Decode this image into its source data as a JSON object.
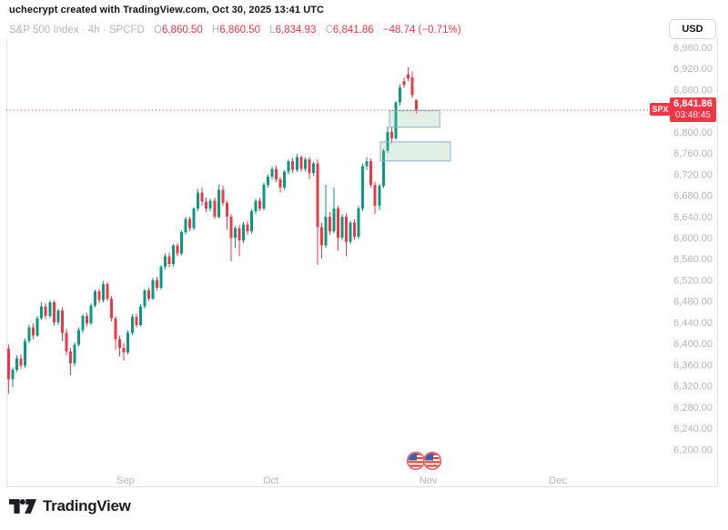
{
  "header": {
    "attribution": "uchecrypt created with TradingView.com, Oct 30, 2025 13:41 UTC"
  },
  "legend": {
    "symbol": "S&P 500 Index",
    "sep": "·",
    "interval": "4h",
    "exchange": "SPCFD",
    "o_label": "O",
    "o": "6,860.50",
    "h_label": "H",
    "h": "6,860.50",
    "l_label": "L",
    "l": "6,834.93",
    "c_label": "C",
    "c": "6,841.86",
    "change": "−48.74 (−0.71%)"
  },
  "toolbar": {
    "currency_button": "USD"
  },
  "last_price": {
    "symbol_tag": "SPX",
    "price": "6,841.86",
    "countdown": "03:48:45",
    "value": 6841.86
  },
  "branding": {
    "logo_text": "TradingView"
  },
  "colors": {
    "up": "#089981",
    "down": "#F23645",
    "axis_text": "#b2b5be",
    "border": "#e0e3eb",
    "zone_fill": "rgba(140,190,150,0.25)",
    "zone_border": "#8fb1cf",
    "price_line": "#F23645",
    "flag_ring": "#e35b66",
    "flag_red": "#e53935",
    "flag_blue": "#3b5fa0"
  },
  "chart_data": {
    "type": "candlestick",
    "title": "S&P 500 Index",
    "interval": "4h",
    "currency": "USD",
    "ylim": [
      6130,
      6977
    ],
    "grid": false,
    "last_close": 6841.86,
    "price_ticks": [
      {
        "value": 6960,
        "label": "6,960.00"
      },
      {
        "value": 6920,
        "label": "6,920.00"
      },
      {
        "value": 6880,
        "label": "6,880.00"
      },
      {
        "value": 6800,
        "label": "6,800.00"
      },
      {
        "value": 6760,
        "label": "6,760.00"
      },
      {
        "value": 6720,
        "label": "6,720.00"
      },
      {
        "value": 6680,
        "label": "6,680.00"
      },
      {
        "value": 6640,
        "label": "6,640.00"
      },
      {
        "value": 6600,
        "label": "6,600.00"
      },
      {
        "value": 6560,
        "label": "6,560.00"
      },
      {
        "value": 6520,
        "label": "6,520.00"
      },
      {
        "value": 6480,
        "label": "6,480.00"
      },
      {
        "value": 6440,
        "label": "6,440.00"
      },
      {
        "value": 6400,
        "label": "6,400.00"
      },
      {
        "value": 6360,
        "label": "6,360.00"
      },
      {
        "value": 6320,
        "label": "6,320.00"
      },
      {
        "value": 6280,
        "label": "6,280.00"
      },
      {
        "value": 6240,
        "label": "6,240.00"
      },
      {
        "value": 6200,
        "label": "6,200.00"
      }
    ],
    "time_labels": [
      {
        "label": "Sep",
        "bar": 28.5
      },
      {
        "label": "Oct",
        "bar": 63.8
      },
      {
        "label": "Nov",
        "bar": 102.0
      },
      {
        "label": "Dec",
        "bar": 133.5
      }
    ],
    "holiday_markers": [
      {
        "bar": 99.0
      },
      {
        "bar": 103.0
      }
    ],
    "zones": [
      {
        "price_top": 6840,
        "price_bottom": 6809,
        "bar_start": 92.6,
        "bar_end": 104.8
      },
      {
        "price_top": 6781,
        "price_bottom": 6745,
        "bar_start": 90.4,
        "bar_end": 107.4
      }
    ],
    "candles": [
      [
        6390,
        6398,
        6305,
        6332
      ],
      [
        6332,
        6355,
        6318,
        6350
      ],
      [
        6350,
        6378,
        6346,
        6372
      ],
      [
        6372,
        6380,
        6352,
        6358
      ],
      [
        6358,
        6410,
        6354,
        6405
      ],
      [
        6405,
        6436,
        6400,
        6430
      ],
      [
        6430,
        6438,
        6408,
        6415
      ],
      [
        6415,
        6452,
        6412,
        6448
      ],
      [
        6448,
        6478,
        6444,
        6470
      ],
      [
        6470,
        6476,
        6446,
        6452
      ],
      [
        6452,
        6482,
        6448,
        6478
      ],
      [
        6478,
        6482,
        6434,
        6440
      ],
      [
        6440,
        6466,
        6435,
        6462
      ],
      [
        6462,
        6468,
        6405,
        6420
      ],
      [
        6420,
        6428,
        6378,
        6385
      ],
      [
        6385,
        6392,
        6340,
        6362
      ],
      [
        6362,
        6402,
        6356,
        6398
      ],
      [
        6398,
        6430,
        6394,
        6425
      ],
      [
        6425,
        6456,
        6420,
        6452
      ],
      [
        6452,
        6458,
        6432,
        6438
      ],
      [
        6438,
        6476,
        6434,
        6472
      ],
      [
        6472,
        6502,
        6468,
        6498
      ],
      [
        6498,
        6504,
        6476,
        6482
      ],
      [
        6482,
        6518,
        6478,
        6512
      ],
      [
        6512,
        6516,
        6480,
        6485
      ],
      [
        6485,
        6490,
        6442,
        6448
      ],
      [
        6448,
        6452,
        6388,
        6408
      ],
      [
        6408,
        6415,
        6375,
        6392
      ],
      [
        6392,
        6400,
        6368,
        6383
      ],
      [
        6383,
        6425,
        6380,
        6420
      ],
      [
        6420,
        6455,
        6416,
        6450
      ],
      [
        6450,
        6456,
        6430,
        6435
      ],
      [
        6435,
        6474,
        6432,
        6470
      ],
      [
        6470,
        6504,
        6466,
        6500
      ],
      [
        6500,
        6506,
        6480,
        6485
      ],
      [
        6485,
        6524,
        6482,
        6520
      ],
      [
        6520,
        6526,
        6500,
        6505
      ],
      [
        6505,
        6548,
        6502,
        6545
      ],
      [
        6545,
        6570,
        6540,
        6565
      ],
      [
        6565,
        6572,
        6544,
        6550
      ],
      [
        6550,
        6588,
        6546,
        6585
      ],
      [
        6585,
        6590,
        6565,
        6570
      ],
      [
        6570,
        6614,
        6566,
        6610
      ],
      [
        6610,
        6640,
        6606,
        6635
      ],
      [
        6635,
        6640,
        6612,
        6618
      ],
      [
        6618,
        6658,
        6614,
        6655
      ],
      [
        6655,
        6692,
        6650,
        6685
      ],
      [
        6685,
        6695,
        6660,
        6668
      ],
      [
        6668,
        6676,
        6648,
        6655
      ],
      [
        6655,
        6674,
        6650,
        6670
      ],
      [
        6670,
        6676,
        6635,
        6640
      ],
      [
        6640,
        6700,
        6636,
        6690
      ],
      [
        6690,
        6698,
        6660,
        6665
      ],
      [
        6665,
        6670,
        6615,
        6640
      ],
      [
        6640,
        6645,
        6555,
        6600
      ],
      [
        6600,
        6622,
        6580,
        6618
      ],
      [
        6618,
        6624,
        6565,
        6595
      ],
      [
        6595,
        6630,
        6590,
        6625
      ],
      [
        6625,
        6632,
        6605,
        6612
      ],
      [
        6612,
        6654,
        6608,
        6650
      ],
      [
        6650,
        6674,
        6645,
        6670
      ],
      [
        6670,
        6676,
        6650,
        6655
      ],
      [
        6655,
        6704,
        6652,
        6700
      ],
      [
        6700,
        6720,
        6695,
        6715
      ],
      [
        6715,
        6734,
        6710,
        6730
      ],
      [
        6730,
        6736,
        6705,
        6710
      ],
      [
        6710,
        6715,
        6685,
        6695
      ],
      [
        6695,
        6728,
        6690,
        6725
      ],
      [
        6725,
        6748,
        6720,
        6745
      ],
      [
        6745,
        6750,
        6722,
        6728
      ],
      [
        6728,
        6758,
        6724,
        6752
      ],
      [
        6752,
        6756,
        6725,
        6730
      ],
      [
        6730,
        6752,
        6726,
        6748
      ],
      [
        6748,
        6752,
        6710,
        6722
      ],
      [
        6722,
        6744,
        6716,
        6740
      ],
      [
        6740,
        6748,
        6548,
        6620
      ],
      [
        6620,
        6628,
        6560,
        6585
      ],
      [
        6585,
        6700,
        6580,
        6640
      ],
      [
        6640,
        6648,
        6605,
        6612
      ],
      [
        6612,
        6695,
        6608,
        6655
      ],
      [
        6655,
        6660,
        6575,
        6600
      ],
      [
        6600,
        6645,
        6595,
        6640
      ],
      [
        6640,
        6646,
        6565,
        6592
      ],
      [
        6592,
        6632,
        6588,
        6628
      ],
      [
        6628,
        6634,
        6596,
        6602
      ],
      [
        6602,
        6660,
        6598,
        6655
      ],
      [
        6655,
        6740,
        6650,
        6735
      ],
      [
        6735,
        6752,
        6728,
        6745
      ],
      [
        6745,
        6750,
        6695,
        6700
      ],
      [
        6700,
        6706,
        6645,
        6660
      ],
      [
        6660,
        6702,
        6652,
        6698
      ],
      [
        6698,
        6768,
        6694,
        6764
      ],
      [
        6764,
        6810,
        6760,
        6800
      ],
      [
        6800,
        6808,
        6778,
        6788
      ],
      [
        6788,
        6858,
        6785,
        6856
      ],
      [
        6856,
        6890,
        6850,
        6884
      ],
      [
        6896,
        6903,
        6883,
        6888
      ],
      [
        6908,
        6922,
        6896,
        6901
      ],
      [
        6903,
        6914,
        6864,
        6869
      ],
      [
        6860.5,
        6860.5,
        6834.93,
        6841.86
      ]
    ]
  }
}
